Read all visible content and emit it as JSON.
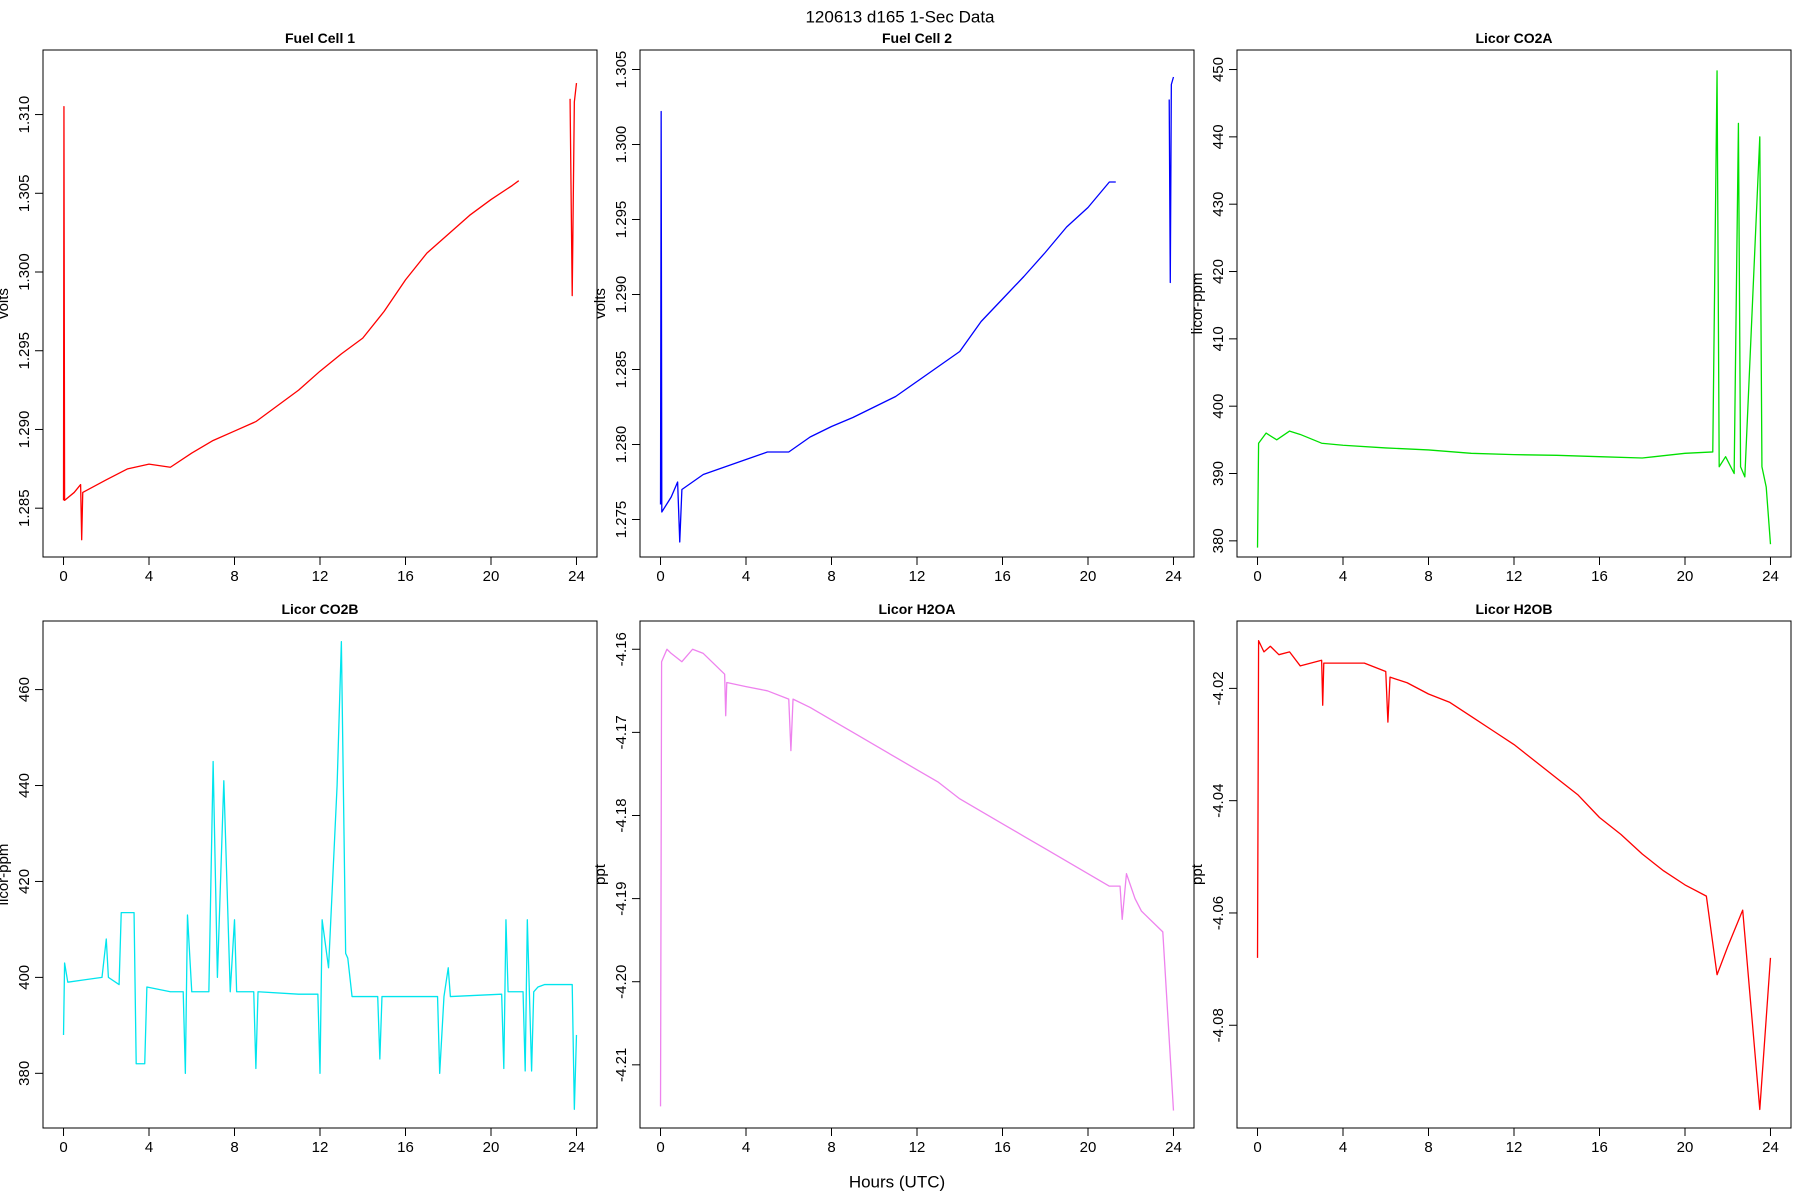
{
  "title": "120613   d165   1-Sec Data",
  "xlabel": "Hours (UTC)",
  "chart_data": [
    {
      "type": "line",
      "title": "Fuel Cell 1",
      "ylabel": "volts",
      "color": "#ff0000",
      "xlim": [
        -0.96,
        24.96
      ],
      "xticks": [
        0,
        4,
        8,
        12,
        16,
        20,
        24
      ],
      "ylim": [
        1.2819,
        1.3141
      ],
      "yticks": [
        1.285,
        {
          "value": 1.29,
          "label": "1.290"
        },
        1.295,
        {
          "value": 1.3,
          "label": "1.300"
        },
        1.305,
        {
          "value": 1.31,
          "label": "1.310"
        }
      ],
      "x": [
        0,
        0.02,
        0.05,
        0.5,
        0.8,
        0.85,
        0.9,
        2,
        3,
        4,
        5,
        6,
        7,
        8,
        9,
        10,
        11,
        12,
        13,
        14,
        15,
        16,
        17,
        18,
        19,
        20,
        21,
        21.3,
        22.5,
        23.7,
        23.8,
        23.9,
        24
      ],
      "values": [
        1.2855,
        1.3105,
        1.2855,
        1.286,
        1.2865,
        1.283,
        1.286,
        1.2868,
        1.2875,
        1.2878,
        1.2876,
        1.2885,
        1.2893,
        1.2899,
        1.2905,
        1.2915,
        1.2925,
        1.2937,
        1.2948,
        1.2958,
        1.2975,
        1.2995,
        1.3012,
        1.3024,
        1.3036,
        1.3046,
        1.3055,
        1.3058,
        null,
        1.311,
        1.2985,
        1.3108,
        1.312
      ]
    },
    {
      "type": "line",
      "title": "Fuel Cell 2",
      "ylabel": "volts",
      "color": "#0000ff",
      "xlim": [
        -0.96,
        24.96
      ],
      "xticks": [
        0,
        4,
        8,
        12,
        16,
        20,
        24
      ],
      "ylim": [
        1.2725,
        1.3063
      ],
      "yticks": [
        1.275,
        {
          "value": 1.28,
          "label": "1.280"
        },
        1.285,
        {
          "value": 1.29,
          "label": "1.290"
        },
        1.295,
        {
          "value": 1.3,
          "label": "1.300"
        },
        1.305
      ],
      "x": [
        0,
        0.03,
        0.06,
        0.5,
        0.8,
        0.9,
        1,
        2,
        3,
        4,
        5,
        6,
        7,
        8,
        9,
        10,
        11,
        12,
        13,
        14,
        15,
        16,
        17,
        18,
        19,
        20,
        21,
        21.3,
        22.5,
        23.8,
        23.85,
        23.9,
        24
      ],
      "values": [
        1.276,
        1.3022,
        1.2755,
        1.2765,
        1.2775,
        1.2735,
        1.277,
        1.278,
        1.2785,
        1.279,
        1.2795,
        1.2795,
        1.2805,
        1.2812,
        1.2818,
        1.2825,
        1.2832,
        1.2842,
        1.2852,
        1.2862,
        1.2882,
        1.2897,
        1.2912,
        1.2928,
        1.2945,
        1.2958,
        1.2975,
        1.2975,
        null,
        1.303,
        1.2908,
        1.304,
        1.3045
      ]
    },
    {
      "type": "line",
      "title": "Licor CO2A",
      "ylabel": "licor-ppm",
      "color": "#00e000",
      "xlim": [
        -0.96,
        24.96
      ],
      "xticks": [
        0,
        4,
        8,
        12,
        16,
        20,
        24
      ],
      "ylim": [
        377.6,
        452.9
      ],
      "yticks": [
        380,
        390,
        400,
        410,
        420,
        430,
        440,
        450
      ],
      "x": [
        0,
        0.05,
        0.4,
        0.9,
        1.5,
        2,
        3,
        4,
        6,
        8,
        10,
        12,
        14,
        16,
        18,
        20,
        21.3,
        21.5,
        21.6,
        21.9,
        22.3,
        22.5,
        22.6,
        22.8,
        23.5,
        23.6,
        23.8,
        24
      ],
      "values": [
        379,
        394.5,
        396,
        395,
        396.3,
        395.8,
        394.5,
        394.2,
        393.8,
        393.5,
        393,
        392.8,
        392.7,
        392.5,
        392.3,
        393,
        393.2,
        449.8,
        391,
        392.5,
        390,
        442,
        391,
        389.5,
        440,
        391,
        388,
        379.5
      ]
    },
    {
      "type": "line",
      "title": "Licor CO2B",
      "ylabel": "licor-ppm",
      "color": "#00e5ee",
      "xlim": [
        -0.96,
        24.96
      ],
      "xticks": [
        0,
        4,
        8,
        12,
        16,
        20,
        24
      ],
      "ylim": [
        368.6,
        474.3
      ],
      "yticks": [
        380,
        400,
        420,
        440,
        460
      ],
      "x": [
        0,
        0.05,
        0.2,
        1,
        1.8,
        2,
        2.1,
        2.6,
        2.7,
        3.3,
        3.4,
        3.8,
        3.9,
        5,
        5.6,
        5.7,
        5.8,
        6,
        6.8,
        7,
        7.2,
        7.5,
        7.8,
        8,
        8.1,
        8.9,
        9,
        9.1,
        11,
        11.9,
        12,
        12.1,
        12.4,
        12.8,
        13,
        13.2,
        13.3,
        13.5,
        14.7,
        14.8,
        14.9,
        17.5,
        17.6,
        17.8,
        18,
        18.1,
        20.5,
        20.6,
        20.7,
        20.8,
        21.5,
        21.6,
        21.7,
        21.9,
        22,
        22.2,
        22.5,
        23.8,
        23.9,
        24
      ],
      "values": [
        388,
        403,
        399,
        399.5,
        400,
        408,
        400,
        398.5,
        413.5,
        413.5,
        382,
        382,
        398,
        397,
        397,
        380,
        413,
        397,
        397,
        445,
        400,
        441,
        397,
        412,
        397,
        397,
        381,
        397,
        396.5,
        396.5,
        380,
        412,
        402,
        440,
        470,
        405,
        404,
        396,
        396,
        383,
        396,
        396,
        380,
        396,
        402,
        396,
        396.5,
        381,
        412,
        397,
        397,
        380.5,
        412,
        380.5,
        397,
        398,
        398.5,
        398.5,
        372.5,
        388
      ]
    },
    {
      "type": "line",
      "title": "Licor H2OA",
      "ylabel": "ppt",
      "color": "#ee82ee",
      "xlim": [
        -0.96,
        24.96
      ],
      "xticks": [
        0,
        4,
        8,
        12,
        16,
        20,
        24
      ],
      "ylim": [
        -4.2176,
        -4.1566
      ],
      "yticks": [
        -4.21,
        {
          "value": -4.2,
          "label": "-4.20"
        },
        -4.19,
        -4.18,
        -4.17,
        -4.16
      ],
      "x": [
        0,
        0.05,
        0.3,
        0.5,
        1,
        1.5,
        2,
        3,
        3.05,
        3.1,
        4,
        5,
        6,
        6.1,
        6.2,
        7,
        8,
        9,
        10,
        11,
        12,
        13,
        14,
        15,
        16,
        17,
        18,
        19,
        20,
        21,
        21.5,
        21.6,
        21.8,
        22.2,
        22.5,
        23.5,
        24
      ],
      "values": [
        -4.215,
        -4.1615,
        -4.16,
        -4.1605,
        -4.1615,
        -4.16,
        -4.1605,
        -4.163,
        -4.168,
        -4.164,
        -4.1645,
        -4.165,
        -4.166,
        -4.1722,
        -4.166,
        -4.167,
        -4.1685,
        -4.17,
        -4.1715,
        -4.173,
        -4.1745,
        -4.176,
        -4.178,
        -4.1795,
        -4.181,
        -4.1825,
        -4.184,
        -4.1855,
        -4.187,
        -4.1885,
        -4.1885,
        -4.1925,
        -4.187,
        -4.19,
        -4.1915,
        -4.194,
        -4.2155
      ]
    },
    {
      "type": "line",
      "title": "Licor H2OB",
      "ylabel": "ppt",
      "color": "#ff0000",
      "xlim": [
        -0.96,
        24.96
      ],
      "xticks": [
        0,
        4,
        8,
        12,
        16,
        20,
        24
      ],
      "ylim": [
        -4.0983,
        -4.008
      ],
      "yticks": [
        -4.08,
        -4.06,
        -4.04,
        -4.02
      ],
      "x": [
        0,
        0.05,
        0.3,
        0.6,
        1,
        1.5,
        2,
        3,
        3.05,
        3.1,
        4,
        5,
        6,
        6.1,
        6.2,
        7,
        8,
        9,
        10,
        11,
        12,
        13,
        14,
        15,
        16,
        17,
        18,
        19,
        20,
        21,
        21.5,
        22,
        22.7,
        23.5,
        24
      ],
      "values": [
        -4.068,
        -4.0115,
        -4.0135,
        -4.0125,
        -4.014,
        -4.0135,
        -4.016,
        -4.015,
        -4.023,
        -4.0155,
        -4.0155,
        -4.0155,
        -4.017,
        -4.026,
        -4.018,
        -4.019,
        -4.021,
        -4.0225,
        -4.025,
        -4.0275,
        -4.03,
        -4.033,
        -4.036,
        -4.039,
        -4.043,
        -4.046,
        -4.0495,
        -4.0525,
        -4.055,
        -4.057,
        -4.071,
        -4.066,
        -4.0595,
        -4.095,
        -4.068
      ]
    }
  ]
}
